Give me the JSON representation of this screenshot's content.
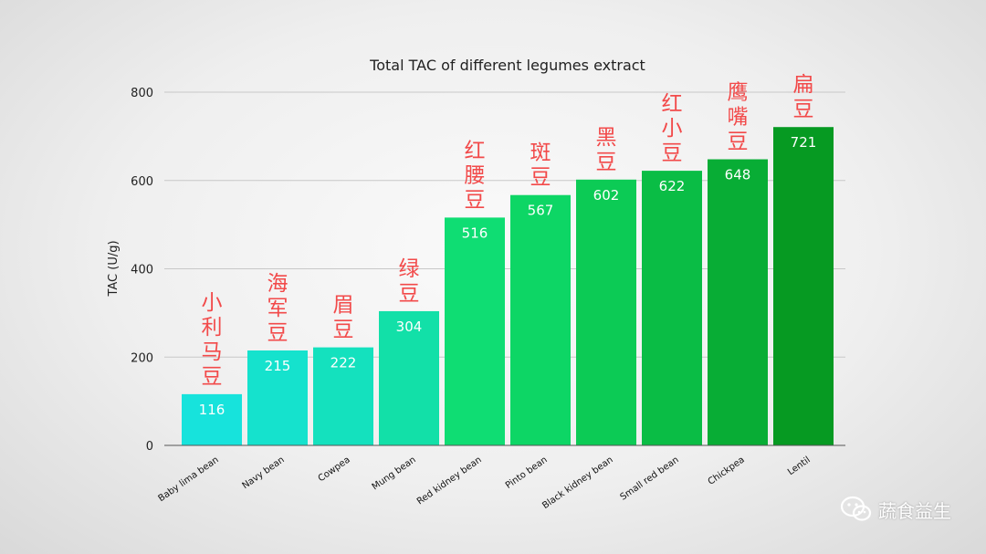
{
  "chart_data": {
    "type": "bar",
    "title": "Total TAC of different legumes extract",
    "ylabel": "TAC (U/g)",
    "xlabel": "",
    "ylim": [
      0,
      800
    ],
    "yticks": [
      0,
      200,
      400,
      600,
      800
    ],
    "grid": true,
    "categories": [
      "Baby lima bean",
      "Navy bean",
      "Cowpea",
      "Mung bean",
      "Red kidney bean",
      "Pinto bean",
      "Black kidney bean",
      "Small red bean",
      "Chickpea",
      "Lentil"
    ],
    "values": [
      116,
      215,
      222,
      304,
      516,
      567,
      602,
      622,
      648,
      721
    ],
    "chinese_labels": [
      "小利马豆",
      "海军豆",
      "眉豆",
      "绿豆",
      "红腰豆",
      "斑豆",
      "黑豆",
      "红小豆",
      "鹰嘴豆",
      "扁豆"
    ],
    "colors": [
      "#17e3dc",
      "#15e2cd",
      "#14e1be",
      "#12e0a8",
      "#0fdd73",
      "#0dd665",
      "#0ccb55",
      "#0abd45",
      "#08ad35",
      "#069a22"
    ],
    "annotation_color": "#f24a4a"
  },
  "watermark": {
    "text": "蔬食益生",
    "icon": "wechat-icon"
  }
}
